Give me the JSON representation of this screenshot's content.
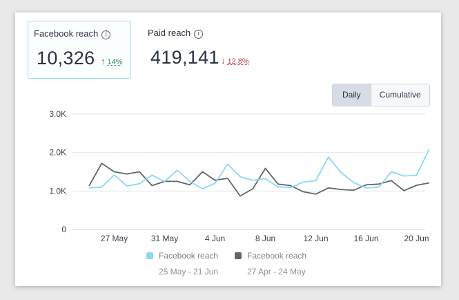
{
  "metrics": {
    "facebook": {
      "label": "Facebook reach",
      "value": "10,326",
      "change": "14%",
      "direction": "up",
      "color": "#2f8a55"
    },
    "paid": {
      "label": "Paid reach",
      "value": "419,141",
      "change": "12.8%",
      "direction": "down",
      "color": "#c43b3b"
    }
  },
  "toggle": {
    "options": [
      "Daily",
      "Cumulative"
    ],
    "selected": "Daily"
  },
  "chart_data": {
    "type": "line",
    "y_ticks": [
      "0",
      "1.0K",
      "2.0K",
      "3.0K"
    ],
    "ylim": [
      0,
      3000
    ],
    "x_tick_labels": [
      "27 May",
      "31 May",
      "4 Jun",
      "8 Jun",
      "12 Jun",
      "16 Jun",
      "20 Jun"
    ],
    "x_tick_indices": [
      2,
      6,
      10,
      14,
      18,
      22,
      26
    ],
    "grid": true,
    "legend_position": "bottom",
    "series": [
      {
        "name": "Facebook reach",
        "range": "25 May - 21 Jun",
        "color": "#8ad7f4",
        "values": [
          1080,
          1100,
          1420,
          1130,
          1190,
          1410,
          1250,
          1540,
          1250,
          1060,
          1200,
          1700,
          1370,
          1280,
          1320,
          1110,
          1090,
          1230,
          1270,
          1880,
          1480,
          1220,
          1080,
          1100,
          1500,
          1390,
          1410,
          2090
        ]
      },
      {
        "name": "Facebook reach",
        "range": "27 Apr - 24 May",
        "color": "#5f6663",
        "values": [
          1130,
          1720,
          1500,
          1440,
          1500,
          1140,
          1250,
          1250,
          1160,
          1500,
          1280,
          1330,
          870,
          1060,
          1590,
          1180,
          1140,
          980,
          920,
          1080,
          1040,
          1020,
          1160,
          1180,
          1270,
          1010,
          1150,
          1210
        ]
      }
    ]
  }
}
